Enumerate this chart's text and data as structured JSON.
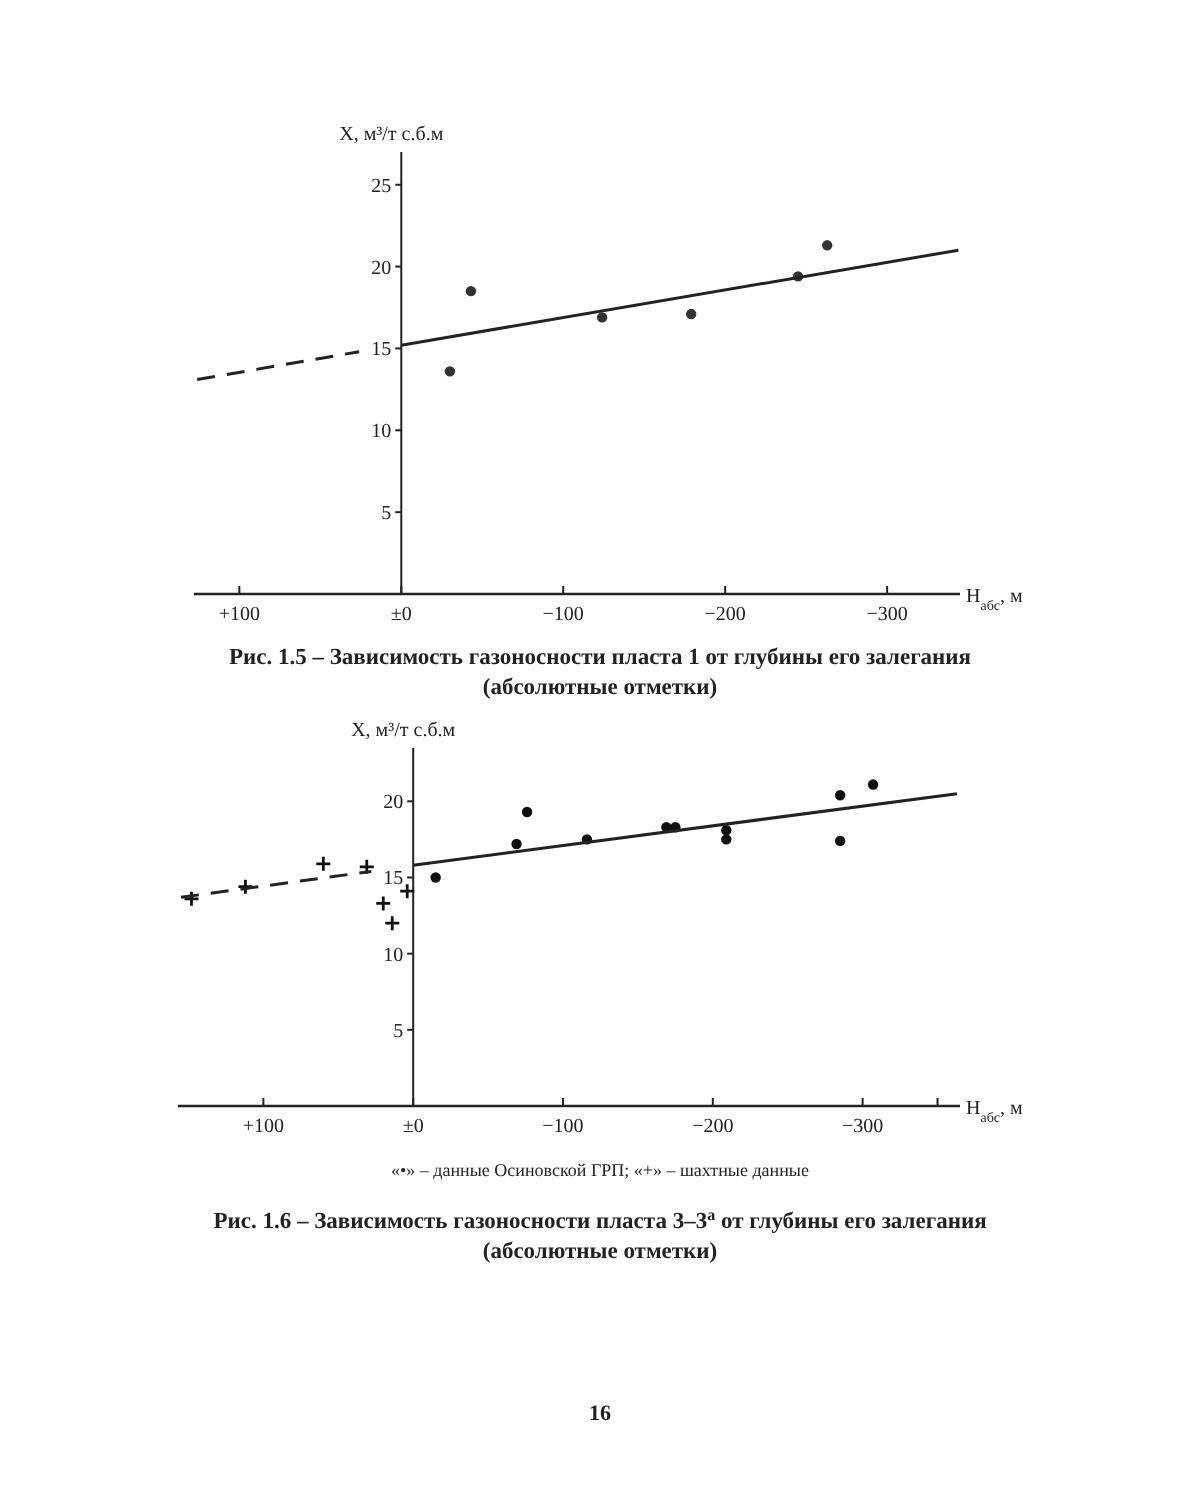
{
  "chart_data": [
    {
      "type": "scatter",
      "title": "Рис. 1.5 – Зависимость газоносности пласта 1 от глубины его залегания (абсолютные отметки)",
      "xlabel": "H$_{абс}$, м",
      "ylabel": "X, м³/т с.б.м",
      "xlim": [
        128,
        -345
      ],
      "ylim": [
        0,
        27
      ],
      "xticks": [
        {
          "value": 100,
          "label": "+100"
        },
        {
          "value": 0,
          "label": "±0"
        },
        {
          "value": -100,
          "label": "−100"
        },
        {
          "value": -200,
          "label": "−200"
        },
        {
          "value": -300,
          "label": "−300"
        }
      ],
      "yticks": [
        5,
        10,
        15,
        20,
        25
      ],
      "series": [
        {
          "color": "#333333",
          "marker": "circle",
          "x": [
            -30,
            -43,
            -124,
            -179,
            -245,
            -263
          ],
          "values": [
            13.6,
            18.5,
            16.9,
            17.1,
            19.4,
            21.3
          ]
        },
        {
          "type": "line",
          "color": "#222222",
          "line_style": "solid",
          "x": [
            0,
            -344
          ],
          "values": [
            15.2,
            21.0
          ]
        },
        {
          "type": "line",
          "color": "#222222",
          "line_style": "dashed",
          "x": [
            126,
            26
          ],
          "values": [
            13.1,
            14.8
          ]
        }
      ]
    },
    {
      "type": "scatter",
      "title": "Рис. 1.6 – Зависимость газоносности пласта 3–3$^{а}$ от глубины его залегания (абсолютные отметки)",
      "xlabel": "H$_{абс}$, м",
      "ylabel": "X, м³/т с.б.м",
      "xlim": [
        157,
        -365
      ],
      "ylim": [
        0,
        23.5
      ],
      "xticks": [
        {
          "value": 100,
          "label": "+100"
        },
        {
          "value": 0,
          "label": "±0"
        },
        {
          "value": -100,
          "label": "−100"
        },
        {
          "value": -200,
          "label": "−200"
        },
        {
          "value": -300,
          "label": "−300"
        },
        {
          "value": -350,
          "label": null
        }
      ],
      "yticks": [
        5,
        10,
        15,
        20
      ],
      "annotations": [
        "«•» – данные Осиновской ГРП; «+» – шахтные данные",
        "16"
      ],
      "series": [
        {
          "color": "#111111",
          "marker": "circle",
          "x": [
            -15,
            -69,
            -76,
            -116,
            -169,
            -175,
            -209,
            -209,
            -285,
            -285,
            -307
          ],
          "values": [
            15.0,
            17.2,
            19.3,
            17.5,
            18.3,
            18.3,
            18.1,
            17.5,
            20.4,
            17.4,
            21.1
          ]
        },
        {
          "color": "#111111",
          "marker": "cross",
          "x": [
            148,
            112,
            60,
            31,
            20,
            14,
            4
          ],
          "values": [
            13.6,
            14.4,
            15.9,
            15.7,
            13.3,
            12.0,
            14.1
          ]
        },
        {
          "type": "line",
          "color": "#222222",
          "line_style": "solid",
          "x": [
            0,
            -363
          ],
          "values": [
            15.8,
            20.5
          ]
        },
        {
          "type": "line",
          "color": "#222222",
          "line_style": "dashed",
          "x": [
            155,
            28
          ],
          "values": [
            13.7,
            15.4
          ]
        }
      ]
    }
  ]
}
